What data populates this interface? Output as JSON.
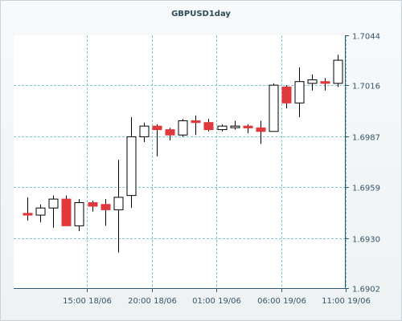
{
  "chart_data": {
    "type": "candlestick",
    "title": "GBPUSD1day",
    "y_ticks": [
      1.7044,
      1.7016,
      1.6987,
      1.6959,
      1.693,
      1.6902
    ],
    "ylim": [
      1.6902,
      1.7044
    ],
    "x_tick_labels": [
      "15:00 18/06",
      "20:00 18/06",
      "01:00 19/06",
      "06:00 19/06",
      "11:00 19/06"
    ],
    "x_tick_index": [
      4.6,
      9.6,
      14.6,
      19.6,
      24.6
    ],
    "grid": true,
    "colors": {
      "up": "#ffffff",
      "down": "#e0393c",
      "wick": "#000000",
      "grid": "#7ec8d2"
    },
    "candles": [
      {
        "o": 1.6944,
        "h": 1.6953,
        "l": 1.694,
        "c": 1.6943
      },
      {
        "o": 1.6943,
        "h": 1.6949,
        "l": 1.6939,
        "c": 1.6947
      },
      {
        "o": 1.6947,
        "h": 1.6954,
        "l": 1.6936,
        "c": 1.6952
      },
      {
        "o": 1.6952,
        "h": 1.6954,
        "l": 1.6937,
        "c": 1.6937
      },
      {
        "o": 1.6937,
        "h": 1.6952,
        "l": 1.6934,
        "c": 1.695
      },
      {
        "o": 1.695,
        "h": 1.6951,
        "l": 1.6945,
        "c": 1.6948
      },
      {
        "o": 1.6949,
        "h": 1.6952,
        "l": 1.6937,
        "c": 1.6946
      },
      {
        "o": 1.6946,
        "h": 1.6974,
        "l": 1.6922,
        "c": 1.6953
      },
      {
        "o": 1.6954,
        "h": 1.6998,
        "l": 1.6947,
        "c": 1.6987
      },
      {
        "o": 1.6987,
        "h": 1.6995,
        "l": 1.6984,
        "c": 1.6993
      },
      {
        "o": 1.6993,
        "h": 1.6994,
        "l": 1.6976,
        "c": 1.6991
      },
      {
        "o": 1.6991,
        "h": 1.6992,
        "l": 1.6985,
        "c": 1.6988
      },
      {
        "o": 1.6988,
        "h": 1.6997,
        "l": 1.6987,
        "c": 1.6996
      },
      {
        "o": 1.6996,
        "h": 1.6999,
        "l": 1.6988,
        "c": 1.6995
      },
      {
        "o": 1.6995,
        "h": 1.6997,
        "l": 1.699,
        "c": 1.6991
      },
      {
        "o": 1.6991,
        "h": 1.6994,
        "l": 1.699,
        "c": 1.6993
      },
      {
        "o": 1.6993,
        "h": 1.6996,
        "l": 1.6991,
        "c": 1.6993
      },
      {
        "o": 1.6993,
        "h": 1.6994,
        "l": 1.6989,
        "c": 1.6992
      },
      {
        "o": 1.6992,
        "h": 1.6996,
        "l": 1.6983,
        "c": 1.699
      },
      {
        "o": 1.699,
        "h": 1.7017,
        "l": 1.699,
        "c": 1.7016
      },
      {
        "o": 1.7015,
        "h": 1.7016,
        "l": 1.7003,
        "c": 1.7006
      },
      {
        "o": 1.7006,
        "h": 1.7026,
        "l": 1.6998,
        "c": 1.7018
      },
      {
        "o": 1.7017,
        "h": 1.7022,
        "l": 1.7013,
        "c": 1.7019
      },
      {
        "o": 1.7018,
        "h": 1.702,
        "l": 1.7013,
        "c": 1.7017
      },
      {
        "o": 1.7017,
        "h": 1.7033,
        "l": 1.7015,
        "c": 1.703
      }
    ]
  }
}
